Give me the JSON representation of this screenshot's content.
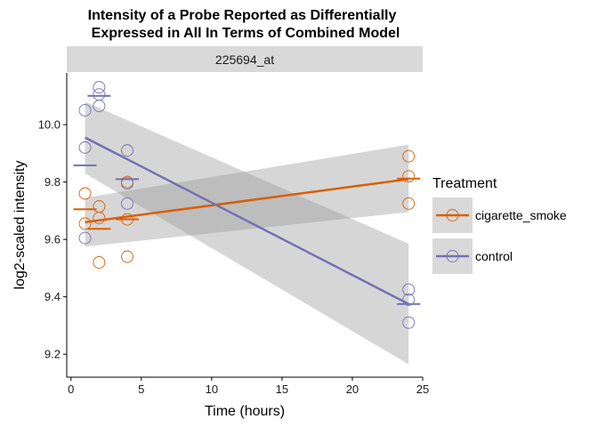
{
  "chart_data": {
    "type": "scatter",
    "title_lines": [
      "Intensity of a Probe Reported as Differentially",
      "Expressed in All In Terms of Combined Model"
    ],
    "facet_label": "225694_at",
    "xlabel": "Time (hours)",
    "ylabel": "log2-scaled intensity",
    "xlim": [
      -0.3,
      25.0
    ],
    "ylim": [
      9.12,
      10.18
    ],
    "x_ticks": [
      0,
      5,
      10,
      15,
      20,
      25
    ],
    "y_ticks": [
      9.2,
      9.4,
      9.6,
      9.8,
      10.0
    ],
    "x_tick_labels": [
      "0",
      "5",
      "10",
      "15",
      "20",
      "25"
    ],
    "y_tick_labels": [
      "9.2",
      "9.4",
      "9.6",
      "9.8",
      "10.0"
    ],
    "legend": {
      "title": "Treatment",
      "position": "right"
    },
    "grid": false,
    "series": [
      {
        "name": "cigarette_smoke",
        "color": "#d95f02",
        "points": [
          {
            "x": 1,
            "y": 9.76
          },
          {
            "x": 1,
            "y": 9.655
          },
          {
            "x": 2,
            "y": 9.715
          },
          {
            "x": 2,
            "y": 9.675
          },
          {
            "x": 2,
            "y": 9.52
          },
          {
            "x": 4,
            "y": 9.8
          },
          {
            "x": 4,
            "y": 9.67
          },
          {
            "x": 4,
            "y": 9.54
          },
          {
            "x": 24,
            "y": 9.89
          },
          {
            "x": 24,
            "y": 9.82
          },
          {
            "x": 24,
            "y": 9.725
          }
        ],
        "group_means": [
          {
            "x": 1,
            "y": 9.705
          },
          {
            "x": 2,
            "y": 9.637
          },
          {
            "x": 4,
            "y": 9.67
          },
          {
            "x": 24,
            "y": 9.812
          }
        ],
        "fit": {
          "x": [
            1,
            24
          ],
          "y": [
            9.66,
            9.81
          ]
        },
        "ci": {
          "x": [
            1,
            24
          ],
          "lower": [
            9.575,
            9.695
          ],
          "upper": [
            9.745,
            9.93
          ]
        }
      },
      {
        "name": "control",
        "color": "#7570b3",
        "points": [
          {
            "x": 1,
            "y": 10.05
          },
          {
            "x": 1,
            "y": 9.92
          },
          {
            "x": 1,
            "y": 9.605
          },
          {
            "x": 2,
            "y": 10.13
          },
          {
            "x": 2,
            "y": 10.105
          },
          {
            "x": 2,
            "y": 10.065
          },
          {
            "x": 4,
            "y": 9.91
          },
          {
            "x": 4,
            "y": 9.795
          },
          {
            "x": 4,
            "y": 9.725
          },
          {
            "x": 24,
            "y": 9.425
          },
          {
            "x": 24,
            "y": 9.39
          },
          {
            "x": 24,
            "y": 9.31
          }
        ],
        "group_means": [
          {
            "x": 1,
            "y": 9.858
          },
          {
            "x": 2,
            "y": 10.1
          },
          {
            "x": 4,
            "y": 9.81
          },
          {
            "x": 24,
            "y": 9.375
          }
        ],
        "fit": {
          "x": [
            1,
            24
          ],
          "y": [
            9.955,
            9.375
          ]
        },
        "ci": {
          "x": [
            1,
            24
          ],
          "lower": [
            9.83,
            9.165
          ],
          "upper": [
            10.08,
            9.585
          ]
        }
      }
    ]
  }
}
